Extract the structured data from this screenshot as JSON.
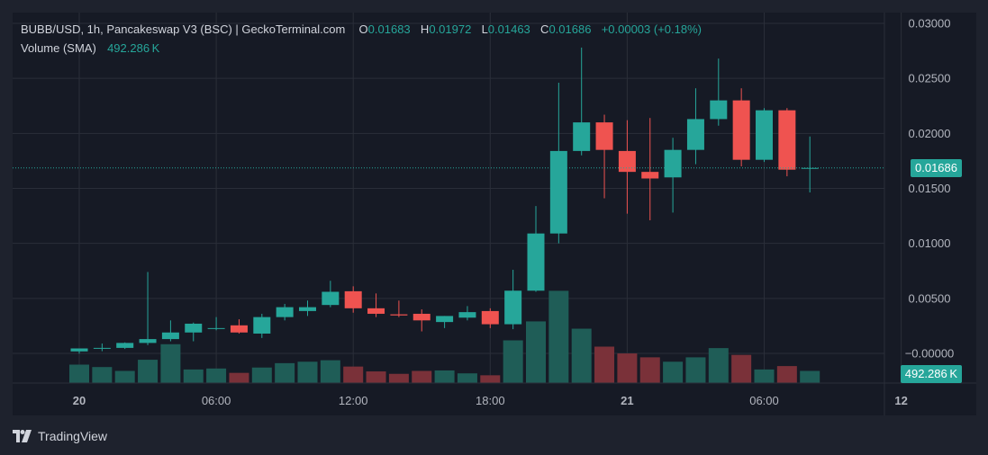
{
  "legend": {
    "title": "BUBB/USD, 1h, Pancakeswap V3 (BSC) | GeckoTerminal.com",
    "open_label": "O",
    "open": "0.01683",
    "high_label": "H",
    "high": "0.01972",
    "low_label": "L",
    "low": "0.01463",
    "close_label": "C",
    "close": "0.01686",
    "change": "+0.00003 (+0.18%)",
    "volume_label": "Volume (SMA)",
    "volume_value": "492.286 K"
  },
  "price_tag": "0.01686",
  "volume_tag": "492.286 K",
  "branding": {
    "name": "TradingView"
  },
  "colors": {
    "up": "#26a69a",
    "down": "#ef5350",
    "up_volume": "#1f5d57",
    "down_volume": "#7a3139",
    "background": "#161a25",
    "grid": "#2a2e39",
    "text": "#b2b5be"
  },
  "chart_data": {
    "type": "candlestick",
    "title": "BUBB/USD, 1h",
    "y_ticks": [
      "0.03000",
      "0.02500",
      "0.02000",
      "0.01500",
      "0.01000",
      "0.00500",
      "−0.00000"
    ],
    "ylim": [
      -0.0027,
      0.0308
    ],
    "x_ticks": [
      {
        "label": "20",
        "index": 0
      },
      {
        "label": "06:00",
        "index": 6
      },
      {
        "label": "12:00",
        "index": 12
      },
      {
        "label": "18:00",
        "index": 18
      },
      {
        "label": "21",
        "index": 24
      },
      {
        "label": "06:00",
        "index": 30
      },
      {
        "label": "12",
        "index": 36
      }
    ],
    "last_price": 0.01686,
    "candles": [
      {
        "o": 0.00018,
        "h": 0.0004,
        "l": -2e-05,
        "c": 0.00045,
        "v": 0.38
      },
      {
        "o": 0.00045,
        "h": 0.0009,
        "l": 0.0002,
        "c": 0.0005,
        "v": 0.33
      },
      {
        "o": 0.0005,
        "h": 0.001,
        "l": 0.0004,
        "c": 0.00095,
        "v": 0.25
      },
      {
        "o": 0.00095,
        "h": 0.0074,
        "l": 0.00075,
        "c": 0.0013,
        "v": 0.48
      },
      {
        "o": 0.0013,
        "h": 0.003,
        "l": 0.0011,
        "c": 0.0019,
        "v": 0.8
      },
      {
        "o": 0.0019,
        "h": 0.0028,
        "l": 0.0011,
        "c": 0.0027,
        "v": 0.28
      },
      {
        "o": 0.0023,
        "h": 0.0033,
        "l": 0.0021,
        "c": 0.0023,
        "v": 0.3
      },
      {
        "o": 0.00255,
        "h": 0.0031,
        "l": 0.0018,
        "c": 0.0019,
        "v": 0.21
      },
      {
        "o": 0.0018,
        "h": 0.0036,
        "l": 0.0014,
        "c": 0.0033,
        "v": 0.32
      },
      {
        "o": 0.0033,
        "h": 0.0045,
        "l": 0.003,
        "c": 0.0042,
        "v": 0.41
      },
      {
        "o": 0.00385,
        "h": 0.0048,
        "l": 0.0034,
        "c": 0.0042,
        "v": 0.44
      },
      {
        "o": 0.0044,
        "h": 0.0066,
        "l": 0.0042,
        "c": 0.0056,
        "v": 0.47
      },
      {
        "o": 0.00565,
        "h": 0.0061,
        "l": 0.0037,
        "c": 0.0041,
        "v": 0.34
      },
      {
        "o": 0.0041,
        "h": 0.00545,
        "l": 0.0033,
        "c": 0.0036,
        "v": 0.24
      },
      {
        "o": 0.00355,
        "h": 0.0048,
        "l": 0.0033,
        "c": 0.00345,
        "v": 0.19
      },
      {
        "o": 0.0036,
        "h": 0.004,
        "l": 0.002,
        "c": 0.003,
        "v": 0.25
      },
      {
        "o": 0.00285,
        "h": 0.0034,
        "l": 0.0023,
        "c": 0.0034,
        "v": 0.26
      },
      {
        "o": 0.00325,
        "h": 0.0043,
        "l": 0.003,
        "c": 0.00375,
        "v": 0.2
      },
      {
        "o": 0.00385,
        "h": 0.0041,
        "l": 0.0023,
        "c": 0.00265,
        "v": 0.16
      },
      {
        "o": 0.00265,
        "h": 0.0076,
        "l": 0.0022,
        "c": 0.0057,
        "v": 0.88
      },
      {
        "o": 0.0057,
        "h": 0.0134,
        "l": 0.0056,
        "c": 0.0109,
        "v": 1.27
      },
      {
        "o": 0.0109,
        "h": 0.0246,
        "l": 0.01,
        "c": 0.0184,
        "v": 1.9
      },
      {
        "o": 0.0184,
        "h": 0.0278,
        "l": 0.018,
        "c": 0.021,
        "v": 1.12
      },
      {
        "o": 0.021,
        "h": 0.0217,
        "l": 0.0141,
        "c": 0.0185,
        "v": 0.75
      },
      {
        "o": 0.0184,
        "h": 0.0212,
        "l": 0.0127,
        "c": 0.0165,
        "v": 0.61
      },
      {
        "o": 0.0165,
        "h": 0.0214,
        "l": 0.0121,
        "c": 0.0159,
        "v": 0.53
      },
      {
        "o": 0.016,
        "h": 0.0196,
        "l": 0.0128,
        "c": 0.0185,
        "v": 0.44
      },
      {
        "o": 0.0185,
        "h": 0.0241,
        "l": 0.0172,
        "c": 0.0213,
        "v": 0.53
      },
      {
        "o": 0.0213,
        "h": 0.0268,
        "l": 0.0207,
        "c": 0.023,
        "v": 0.72
      },
      {
        "o": 0.023,
        "h": 0.0241,
        "l": 0.017,
        "c": 0.0176,
        "v": 0.58
      },
      {
        "o": 0.0176,
        "h": 0.0223,
        "l": 0.0174,
        "c": 0.0221,
        "v": 0.28
      },
      {
        "o": 0.0221,
        "h": 0.0223,
        "l": 0.0161,
        "c": 0.0167,
        "v": 0.35
      },
      {
        "o": 0.01683,
        "h": 0.01972,
        "l": 0.01463,
        "c": 0.01686,
        "v": 0.25
      }
    ]
  }
}
